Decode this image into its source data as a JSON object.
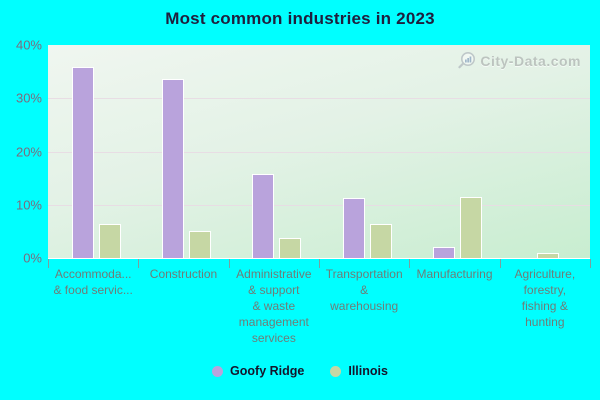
{
  "title": "Most common industries in 2023",
  "watermark": {
    "text": "City-Data.com"
  },
  "colors": {
    "page_background": "#00ffff",
    "goofy_ridge_bar": "#b9a3dc",
    "illinois_bar": "#c6d7a4",
    "bar_border": "#ffffff",
    "plot_gradient_top": "#f0f6f0",
    "plot_gradient_bottom": "#c8edd0",
    "gridline": "#e8dbe4",
    "title_text": "#1f1f3d",
    "x_axis_text": "#6e7d78",
    "y_axis_text": "#7b6c7e",
    "tick_mark": "#7c9e9e",
    "legend_text": "#15152b",
    "watermark_text": "#b3b9b6"
  },
  "chart_data": {
    "type": "bar",
    "title": "Most common industries in 2023",
    "categories": [
      "Accommoda... & food servic...",
      "Construction",
      "Administrative & support & waste management services",
      "Transportation & warehousing",
      "Manufacturing",
      "Agriculture, forestry, fishing & hunting"
    ],
    "category_display_lines": [
      [
        "Accommoda...",
        "& food servic..."
      ],
      [
        "Construction"
      ],
      [
        "Administrative",
        "& support",
        "& waste",
        "management",
        "services"
      ],
      [
        "Transportation",
        "&",
        "warehousing"
      ],
      [
        "Manufacturing"
      ],
      [
        "Agriculture,",
        "forestry,",
        "fishing &",
        "hunting"
      ]
    ],
    "series": [
      {
        "name": "Goofy Ridge",
        "color": "#b9a3dc",
        "values": [
          35.8,
          33.6,
          15.8,
          11.2,
          2.1,
          0
        ]
      },
      {
        "name": "Illinois",
        "color": "#c6d7a4",
        "values": [
          6.3,
          5.1,
          3.8,
          6.3,
          11.5,
          0.9
        ]
      }
    ],
    "xlabel": "",
    "ylabel": "",
    "ylim": [
      0,
      40
    ],
    "ytick_labels": [
      "40%",
      "30%",
      "20%",
      "10%",
      "0%"
    ],
    "grid": true,
    "legend_position": "bottom"
  }
}
